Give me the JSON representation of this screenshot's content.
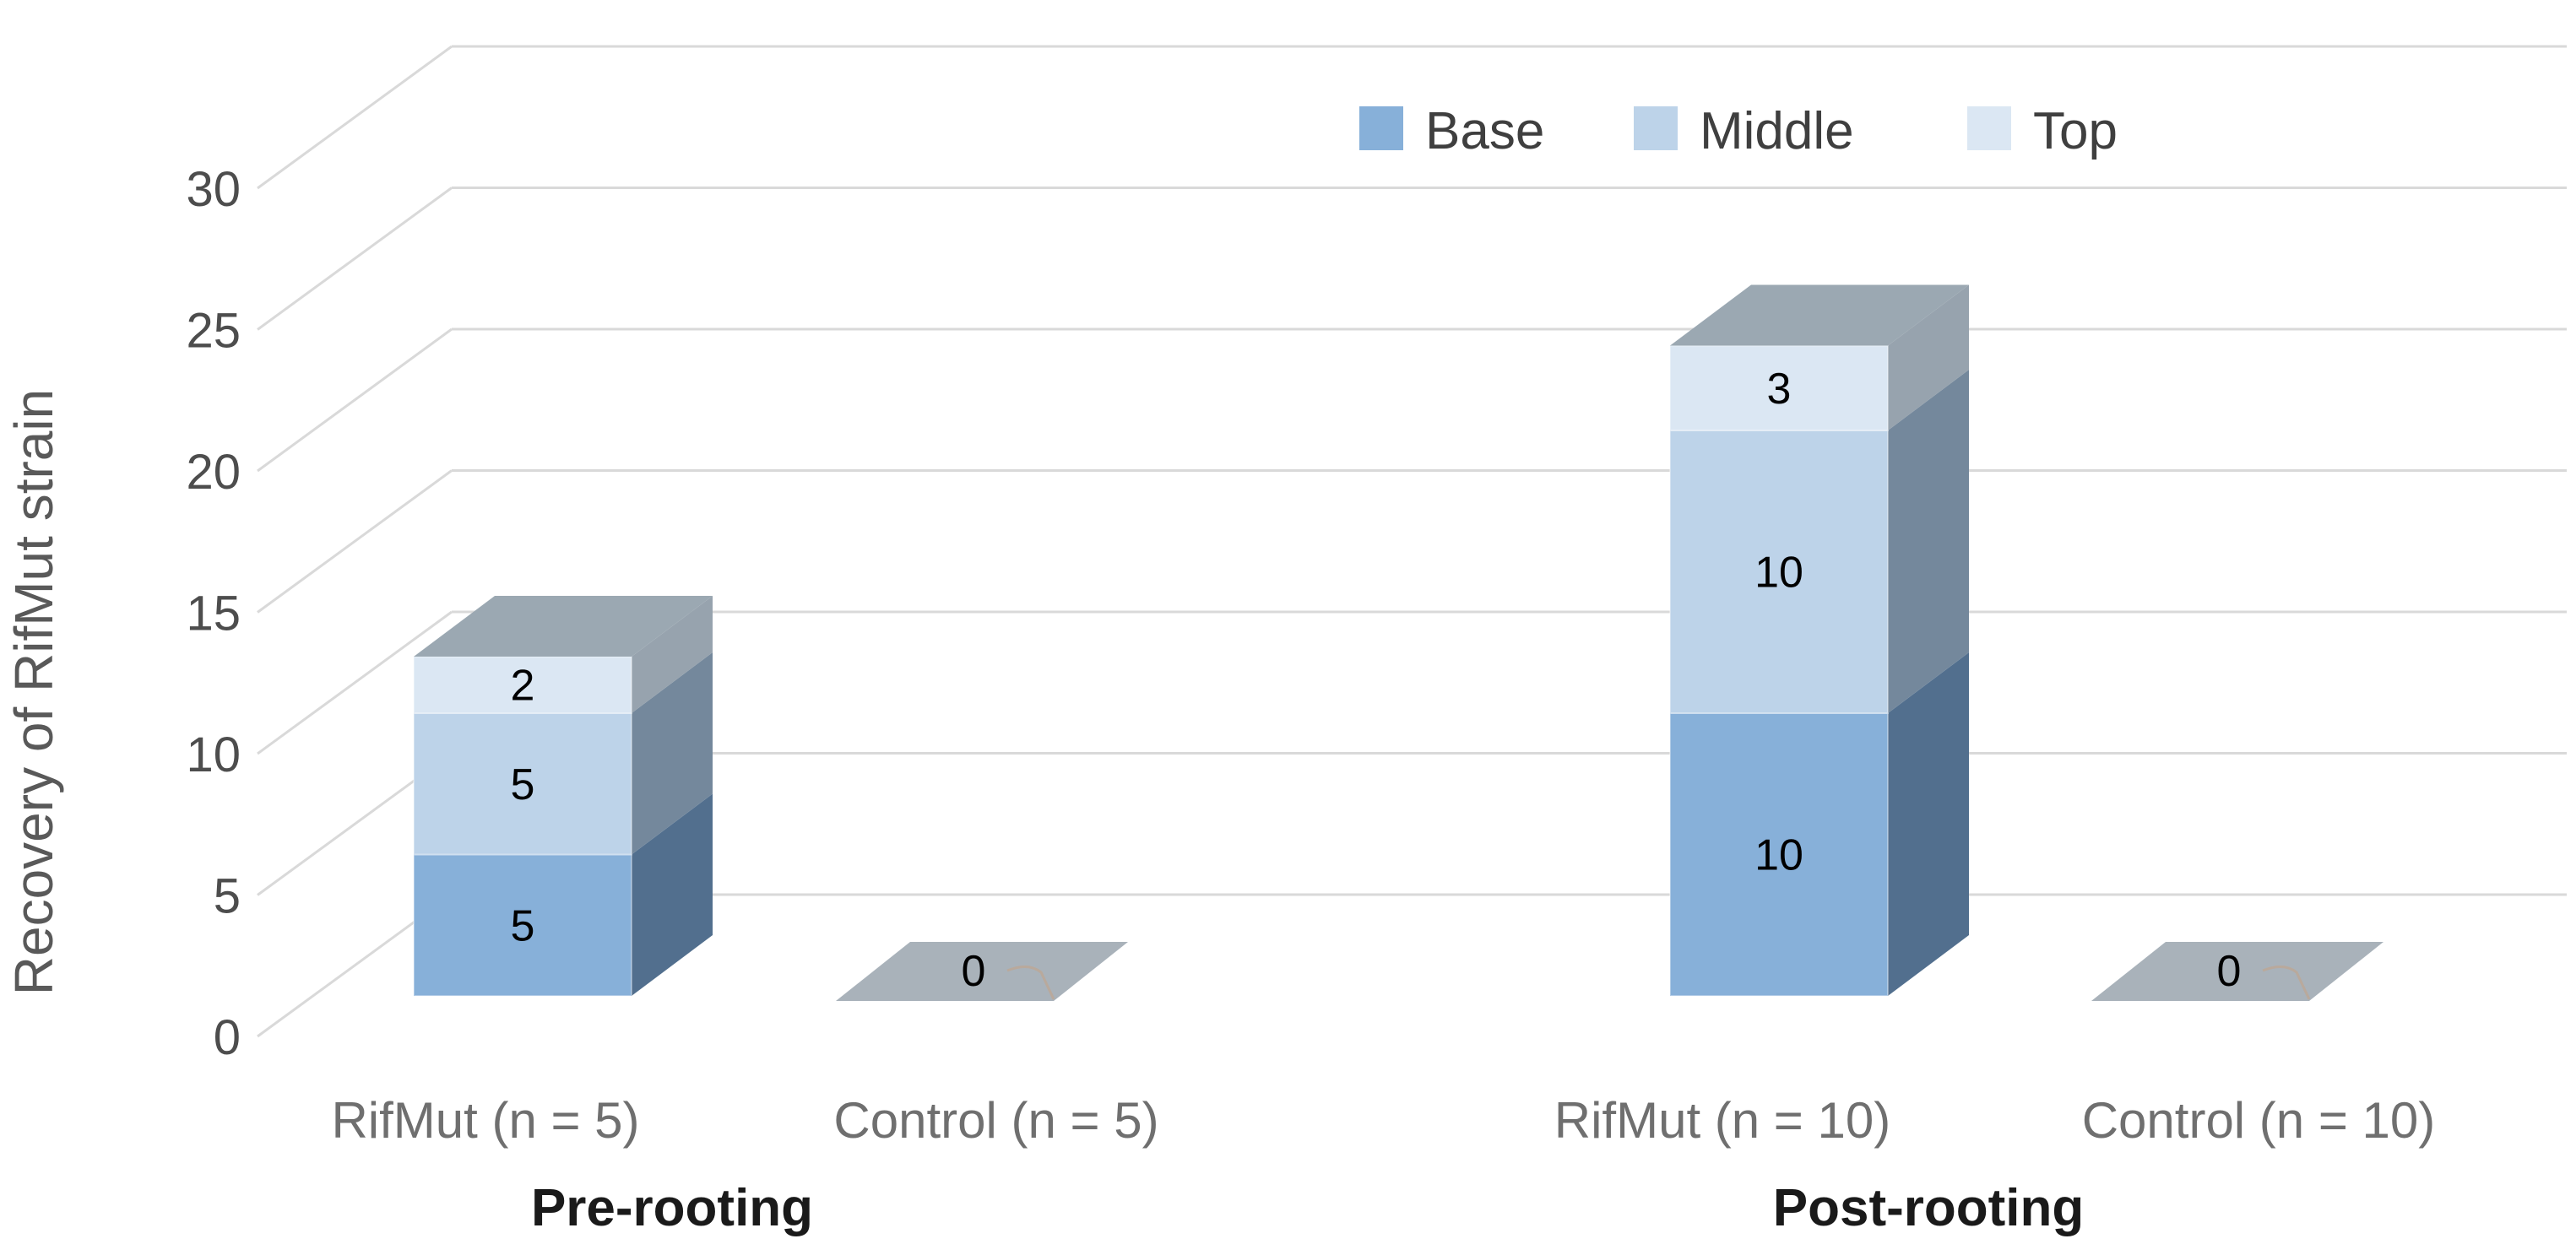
{
  "chart_data": {
    "type": "bar",
    "variant": "3d-stacked-column",
    "title": "",
    "ylabel": "Recovery of RifMut strain",
    "xlabel": "",
    "ylim": [
      0,
      30
    ],
    "yticks": [
      0,
      5,
      10,
      15,
      20,
      25,
      30
    ],
    "grid": true,
    "legend_position": "top-right",
    "categories": [
      "RifMut (n = 5)",
      "Control (n = 5)",
      "RifMut (n = 10)",
      "Control (n = 10)"
    ],
    "groups": [
      {
        "label": "Pre-rooting",
        "span": [
          0,
          1
        ]
      },
      {
        "label": "Post-rooting",
        "span": [
          2,
          3
        ]
      }
    ],
    "series": [
      {
        "name": "Base",
        "color": "#87b0d9",
        "side_color": "#526f8e",
        "values": [
          5,
          0,
          10,
          0
        ]
      },
      {
        "name": "Middle",
        "color": "#bdd3e9",
        "side_color": "#74889c",
        "values": [
          5,
          0,
          10,
          0
        ]
      },
      {
        "name": "Top",
        "color": "#dbe7f3",
        "side_color": "#97a3ae",
        "values": [
          2,
          0,
          3,
          0
        ]
      }
    ],
    "totals": [
      12,
      0,
      23,
      0
    ],
    "zero_label": "0",
    "colors": {
      "cap": "#9ba8b2",
      "zero_face": "#a9b2ba",
      "gridline": "#d9d9d9",
      "tick_text": "#4d4d4d",
      "axis_title": "#595959",
      "category_text": "#6f6f6f",
      "group_text": "#1a1a1a",
      "data_label": "#000000",
      "legend_text": "#3f3f3f",
      "leader_line": "#b9a99c",
      "background": "#ffffff"
    }
  }
}
